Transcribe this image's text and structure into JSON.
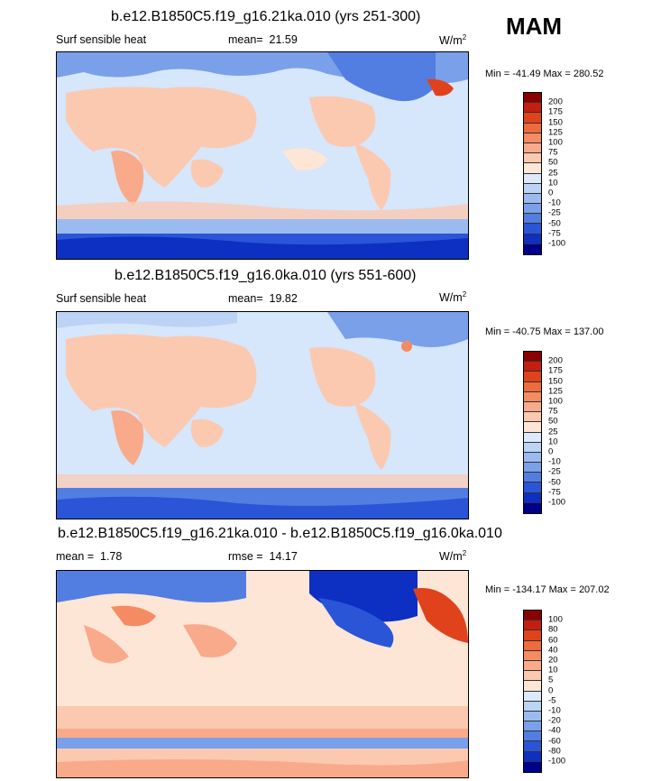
{
  "season": "MAM",
  "panels": [
    {
      "title": "b.e12.B1850C5.f19_g16.21ka.010 (yrs 251-300)",
      "variable": "Surf sensible heat",
      "stat_label": "mean=",
      "stat_value": "21.59",
      "units": "W/m",
      "units_sup": "2",
      "minmax": "Min = -41.49 Max = 280.52",
      "colorbar_labels": [
        "200",
        "175",
        "150",
        "125",
        "100",
        "75",
        "50",
        "25",
        "10",
        "0",
        "-10",
        "-25",
        "-50",
        "-75",
        "-100"
      ],
      "colorbar_colors": [
        "#8b0000",
        "#c41e0f",
        "#e0421c",
        "#ef6a3c",
        "#f58b63",
        "#f9aa8b",
        "#fbc9b0",
        "#fde6d6",
        "#dce9fb",
        "#bcd3f6",
        "#9bbbf0",
        "#7aa0ea",
        "#527ee2",
        "#2a55d6",
        "#0d2fc2",
        "#00008b"
      ]
    },
    {
      "title": "b.e12.B1850C5.f19_g16.0ka.010 (yrs 551-600)",
      "variable": "Surf sensible heat",
      "stat_label": "mean=",
      "stat_value": "19.82",
      "units": "W/m",
      "units_sup": "2",
      "minmax": "Min = -40.75 Max = 137.00",
      "colorbar_labels": [
        "200",
        "175",
        "150",
        "125",
        "100",
        "75",
        "50",
        "25",
        "10",
        "0",
        "-10",
        "-25",
        "-50",
        "-75",
        "-100"
      ],
      "colorbar_colors": [
        "#8b0000",
        "#c41e0f",
        "#e0421c",
        "#ef6a3c",
        "#f58b63",
        "#f9aa8b",
        "#fbc9b0",
        "#fde6d6",
        "#dce9fb",
        "#bcd3f6",
        "#9bbbf0",
        "#7aa0ea",
        "#527ee2",
        "#2a55d6",
        "#0d2fc2",
        "#00008b"
      ]
    },
    {
      "title": "b.e12.B1850C5.f19_g16.21ka.010 - b.e12.B1850C5.f19_g16.0ka.010",
      "mean_label": "mean =",
      "mean_value": "1.78",
      "rmse_label": "rmse =",
      "rmse_value": "14.17",
      "units": "W/m",
      "units_sup": "2",
      "minmax": "Min = -134.17 Max = 207.02",
      "colorbar_labels": [
        "100",
        "80",
        "60",
        "40",
        "20",
        "10",
        "5",
        "0",
        "-5",
        "-10",
        "-20",
        "-40",
        "-60",
        "-80",
        "-100"
      ],
      "colorbar_colors": [
        "#8b0000",
        "#c41e0f",
        "#e0421c",
        "#ef6a3c",
        "#f58b63",
        "#f9aa8b",
        "#fbc9b0",
        "#fde6d6",
        "#dce9fb",
        "#bcd3f6",
        "#9bbbf0",
        "#7aa0ea",
        "#527ee2",
        "#2a55d6",
        "#0d2fc2",
        "#00008b"
      ]
    }
  ]
}
